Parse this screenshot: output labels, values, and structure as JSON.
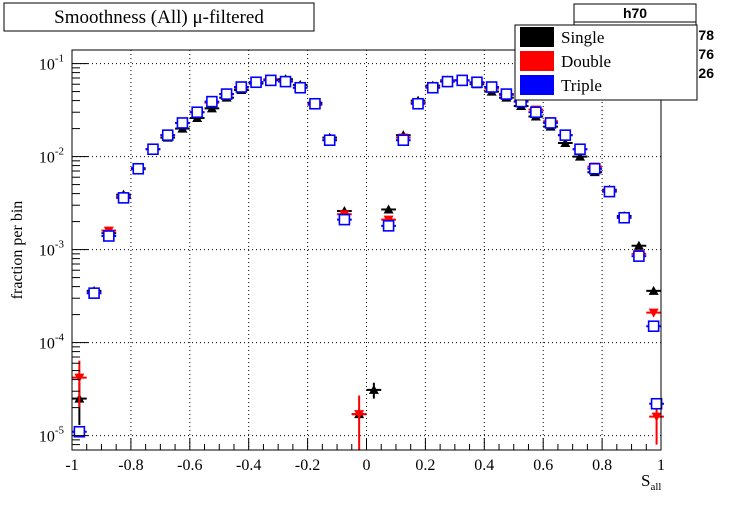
{
  "title": "Smoothness (All) μ-filtered",
  "stats_box": {
    "title": "h70",
    "partial_values": [
      "78",
      "76",
      "26"
    ]
  },
  "chart_data": {
    "type": "scatter",
    "title": "Smoothness (All) μ-filtered",
    "xlabel": "S",
    "xlabel_sub": "all",
    "ylabel": "fraction per bin",
    "xlim": [
      -1,
      1
    ],
    "ylim": [
      7e-06,
      0.14
    ],
    "yscale": "log",
    "grid": true,
    "legend_position": "top-right",
    "x_ticks": [
      -1,
      -0.8,
      -0.6,
      -0.4,
      -0.2,
      0,
      0.2,
      0.4,
      0.6,
      0.8,
      1
    ],
    "x_tick_labels": [
      "-1",
      "-0.8",
      "-0.6",
      "-0.4",
      "-0.2",
      "0",
      "0.2",
      "0.4",
      "0.6",
      "0.8",
      "1"
    ],
    "y_ticks": [
      1e-05,
      0.0001,
      0.001,
      0.01,
      0.1
    ],
    "y_tick_labels": [
      {
        "base": "10",
        "exp": "-5"
      },
      {
        "base": "10",
        "exp": "-4"
      },
      {
        "base": "10",
        "exp": "-3"
      },
      {
        "base": "10",
        "exp": "-2"
      },
      {
        "base": "10",
        "exp": "-1"
      }
    ],
    "bin_halfwidth": 0.025,
    "series": [
      {
        "name": "Single",
        "color": "#000000",
        "marker": "triangle-up",
        "points": [
          {
            "x": -0.975,
            "y": 2.5e-05,
            "err": 1.2e-05
          },
          {
            "x": -0.925,
            "y": 0.00036
          },
          {
            "x": -0.875,
            "y": 0.0015
          },
          {
            "x": -0.825,
            "y": 0.0039
          },
          {
            "x": -0.775,
            "y": 0.0075
          },
          {
            "x": -0.725,
            "y": 0.012
          },
          {
            "x": -0.675,
            "y": 0.016
          },
          {
            "x": -0.625,
            "y": 0.02
          },
          {
            "x": -0.575,
            "y": 0.026
          },
          {
            "x": -0.525,
            "y": 0.033
          },
          {
            "x": -0.475,
            "y": 0.043
          },
          {
            "x": -0.425,
            "y": 0.052
          },
          {
            "x": -0.375,
            "y": 0.061
          },
          {
            "x": -0.325,
            "y": 0.067
          },
          {
            "x": -0.275,
            "y": 0.068
          },
          {
            "x": -0.225,
            "y": 0.059
          },
          {
            "x": -0.175,
            "y": 0.038
          },
          {
            "x": -0.125,
            "y": 0.016
          },
          {
            "x": -0.075,
            "y": 0.0026
          },
          {
            "x": -0.025,
            "y": 1.7e-05
          },
          {
            "x": 0.025,
            "y": 3.1e-05,
            "err": 6e-06
          },
          {
            "x": 0.075,
            "y": 0.0027
          },
          {
            "x": 0.125,
            "y": 0.017
          },
          {
            "x": 0.175,
            "y": 0.04
          },
          {
            "x": 0.225,
            "y": 0.058
          },
          {
            "x": 0.275,
            "y": 0.066
          },
          {
            "x": 0.325,
            "y": 0.066
          },
          {
            "x": 0.375,
            "y": 0.06
          },
          {
            "x": 0.425,
            "y": 0.05
          },
          {
            "x": 0.475,
            "y": 0.043
          },
          {
            "x": 0.525,
            "y": 0.035
          },
          {
            "x": 0.575,
            "y": 0.027
          },
          {
            "x": 0.625,
            "y": 0.021
          },
          {
            "x": 0.675,
            "y": 0.014
          },
          {
            "x": 0.725,
            "y": 0.01
          },
          {
            "x": 0.775,
            "y": 0.0068
          },
          {
            "x": 0.825,
            "y": 0.0044
          },
          {
            "x": 0.875,
            "y": 0.0023
          },
          {
            "x": 0.925,
            "y": 0.0011
          },
          {
            "x": 0.975,
            "y": 0.00036
          }
        ]
      },
      {
        "name": "Double",
        "color": "#ff0000",
        "marker": "triangle-down",
        "points": [
          {
            "x": -0.975,
            "y": 4.2e-05,
            "err": 2.2e-05
          },
          {
            "x": -0.925,
            "y": 0.00034
          },
          {
            "x": -0.875,
            "y": 0.0016
          },
          {
            "x": -0.825,
            "y": 0.0037
          },
          {
            "x": -0.775,
            "y": 0.0073
          },
          {
            "x": -0.725,
            "y": 0.012
          },
          {
            "x": -0.675,
            "y": 0.017
          },
          {
            "x": -0.625,
            "y": 0.023
          },
          {
            "x": -0.575,
            "y": 0.03
          },
          {
            "x": -0.525,
            "y": 0.038
          },
          {
            "x": -0.475,
            "y": 0.047
          },
          {
            "x": -0.425,
            "y": 0.055
          },
          {
            "x": -0.375,
            "y": 0.063
          },
          {
            "x": -0.325,
            "y": 0.068
          },
          {
            "x": -0.275,
            "y": 0.065
          },
          {
            "x": -0.225,
            "y": 0.055
          },
          {
            "x": -0.175,
            "y": 0.036
          },
          {
            "x": -0.125,
            "y": 0.015
          },
          {
            "x": -0.075,
            "y": 0.0024
          },
          {
            "x": -0.025,
            "y": 1.7e-05,
            "err": 1e-05
          },
          {
            "x": 0.075,
            "y": 0.0021
          },
          {
            "x": 0.125,
            "y": 0.016
          },
          {
            "x": 0.175,
            "y": 0.038
          },
          {
            "x": 0.225,
            "y": 0.056
          },
          {
            "x": 0.275,
            "y": 0.065
          },
          {
            "x": 0.325,
            "y": 0.066
          },
          {
            "x": 0.375,
            "y": 0.062
          },
          {
            "x": 0.425,
            "y": 0.054
          },
          {
            "x": 0.475,
            "y": 0.046
          },
          {
            "x": 0.525,
            "y": 0.039
          },
          {
            "x": 0.575,
            "y": 0.032
          },
          {
            "x": 0.625,
            "y": 0.024
          },
          {
            "x": 0.675,
            "y": 0.017
          },
          {
            "x": 0.725,
            "y": 0.012
          },
          {
            "x": 0.775,
            "y": 0.0078
          },
          {
            "x": 0.825,
            "y": 0.0043
          },
          {
            "x": 0.875,
            "y": 0.0022
          },
          {
            "x": 0.925,
            "y": 0.0009
          },
          {
            "x": 0.975,
            "y": 0.00021
          },
          {
            "x": 0.985,
            "y": 1.6e-05,
            "err": 8e-06
          }
        ]
      },
      {
        "name": "Triple",
        "color": "#0000ff",
        "marker": "open-square",
        "points": [
          {
            "x": -0.975,
            "y": 1.1e-05
          },
          {
            "x": -0.925,
            "y": 0.00034
          },
          {
            "x": -0.875,
            "y": 0.0014
          },
          {
            "x": -0.825,
            "y": 0.0036
          },
          {
            "x": -0.775,
            "y": 0.0074
          },
          {
            "x": -0.725,
            "y": 0.012
          },
          {
            "x": -0.675,
            "y": 0.017
          },
          {
            "x": -0.625,
            "y": 0.023
          },
          {
            "x": -0.575,
            "y": 0.03
          },
          {
            "x": -0.525,
            "y": 0.039
          },
          {
            "x": -0.475,
            "y": 0.047
          },
          {
            "x": -0.425,
            "y": 0.056
          },
          {
            "x": -0.375,
            "y": 0.063
          },
          {
            "x": -0.325,
            "y": 0.066
          },
          {
            "x": -0.275,
            "y": 0.064
          },
          {
            "x": -0.225,
            "y": 0.055
          },
          {
            "x": -0.175,
            "y": 0.037
          },
          {
            "x": -0.125,
            "y": 0.015
          },
          {
            "x": -0.075,
            "y": 0.0021
          },
          {
            "x": 0.075,
            "y": 0.0018
          },
          {
            "x": 0.125,
            "y": 0.015
          },
          {
            "x": 0.175,
            "y": 0.037
          },
          {
            "x": 0.225,
            "y": 0.055
          },
          {
            "x": 0.275,
            "y": 0.064
          },
          {
            "x": 0.325,
            "y": 0.066
          },
          {
            "x": 0.375,
            "y": 0.063
          },
          {
            "x": 0.425,
            "y": 0.056
          },
          {
            "x": 0.475,
            "y": 0.047
          },
          {
            "x": 0.525,
            "y": 0.039
          },
          {
            "x": 0.575,
            "y": 0.03
          },
          {
            "x": 0.625,
            "y": 0.023
          },
          {
            "x": 0.675,
            "y": 0.017
          },
          {
            "x": 0.725,
            "y": 0.012
          },
          {
            "x": 0.775,
            "y": 0.0074
          },
          {
            "x": 0.825,
            "y": 0.0042
          },
          {
            "x": 0.875,
            "y": 0.0022
          },
          {
            "x": 0.925,
            "y": 0.00085
          },
          {
            "x": 0.975,
            "y": 0.00015
          },
          {
            "x": 0.985,
            "y": 2.2e-05
          }
        ]
      }
    ]
  }
}
